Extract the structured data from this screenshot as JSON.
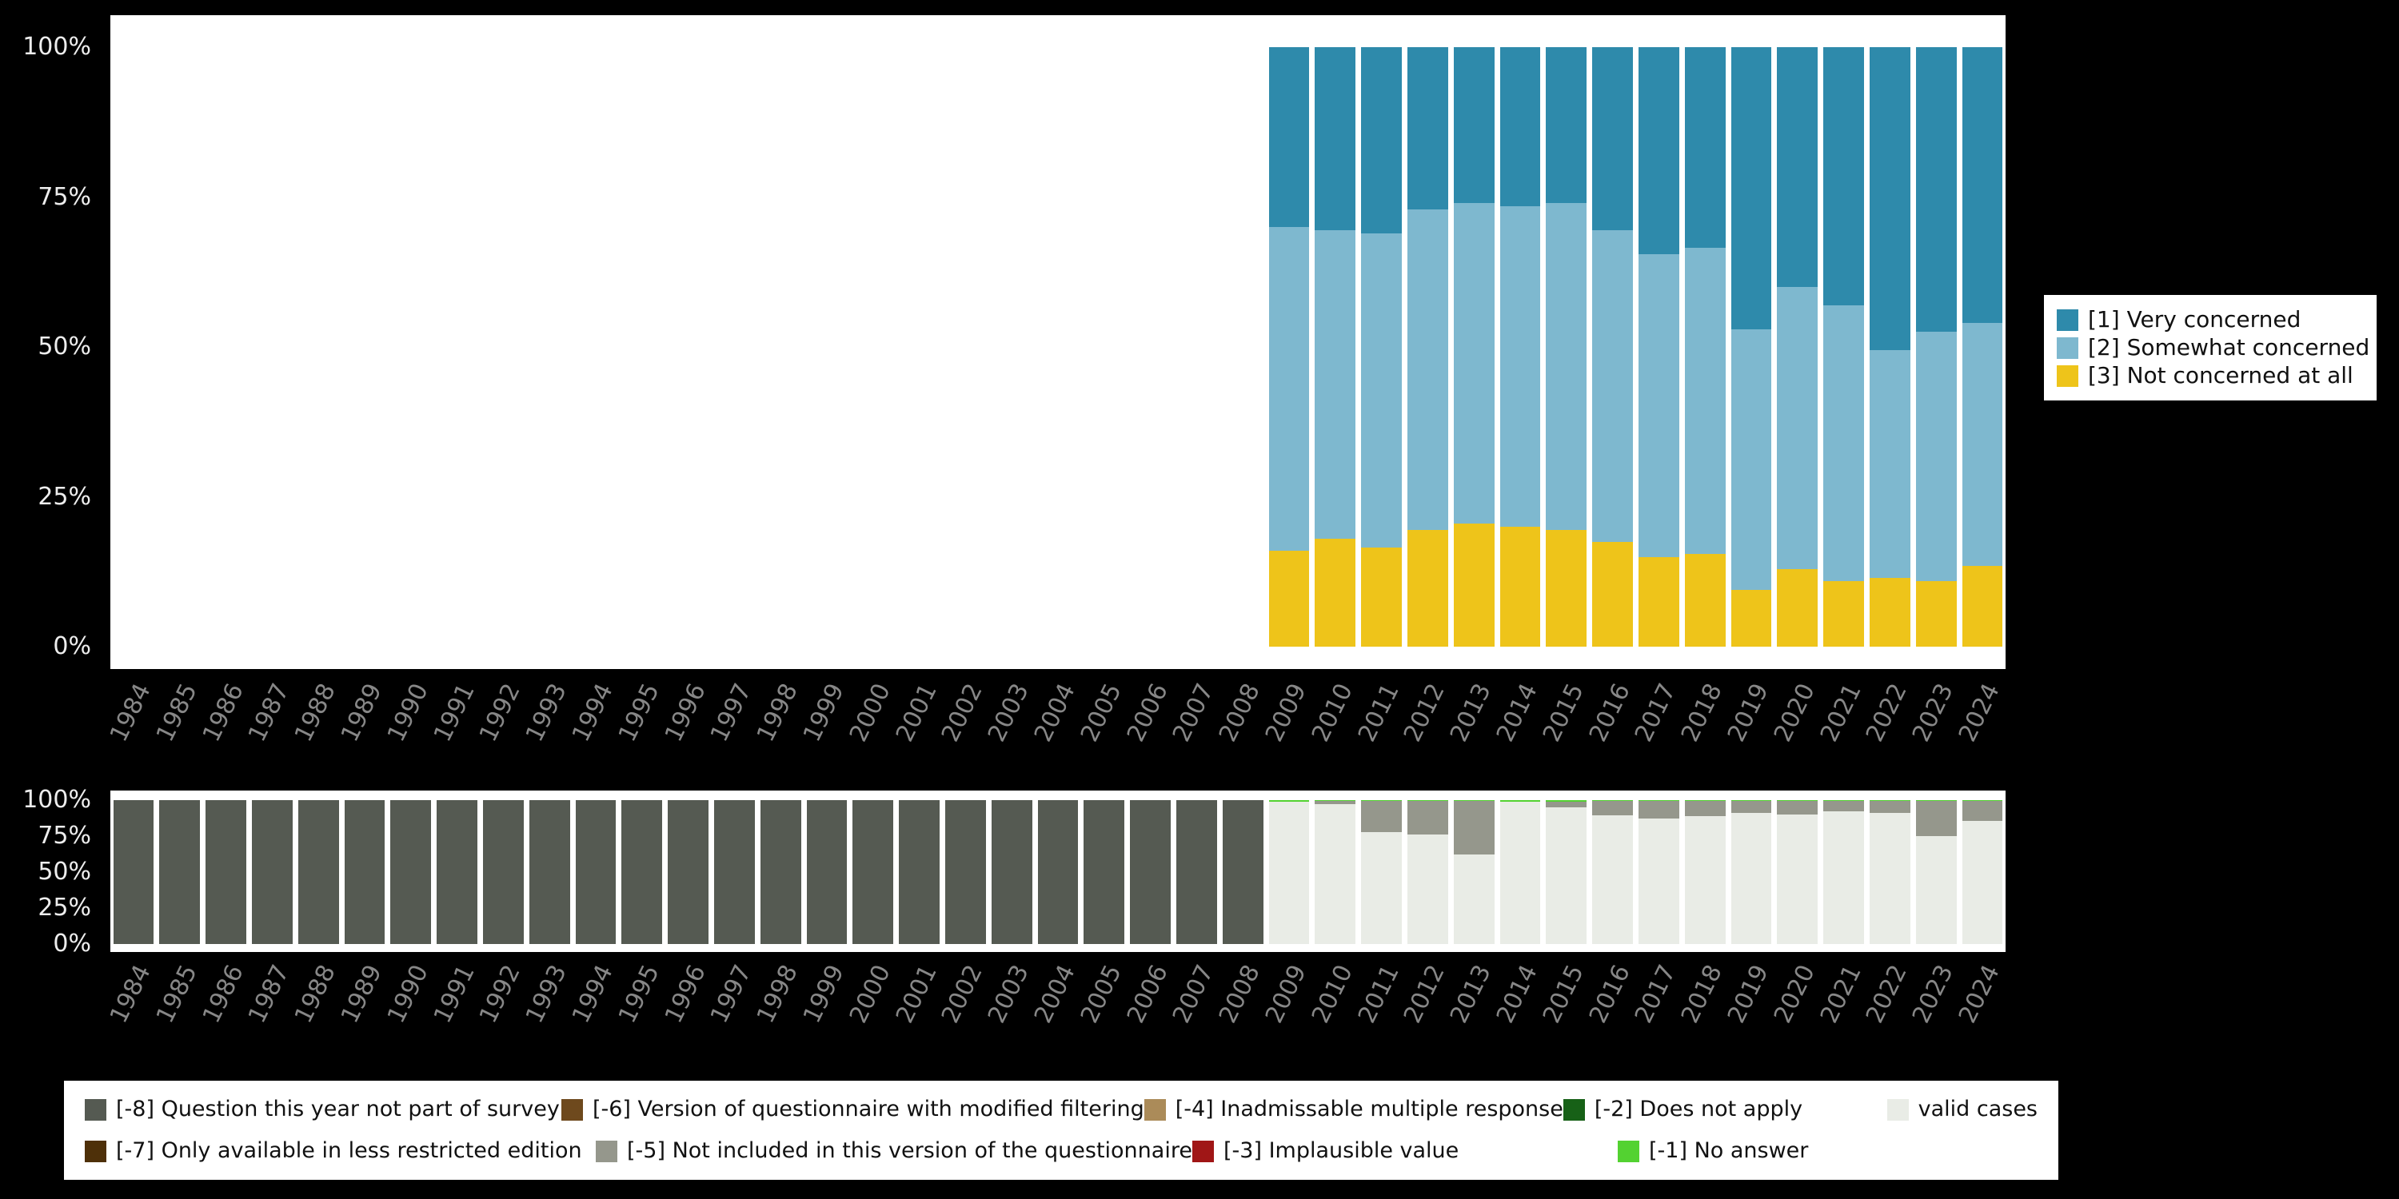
{
  "title": "",
  "colors": {
    "background": "#000000",
    "panel": "#ffffff",
    "axis_tick_text": "#ededed",
    "year_tick_text": "#878787",
    "very_concerned": "#2e8aab",
    "somewhat_concerned": "#7eb8cf",
    "not_concerned": "#eec41a",
    "missing_dash8": "#555a52",
    "missing_dash7": "#4e3009",
    "missing_dash6": "#6e491d",
    "missing_dash5": "#95978c",
    "missing_dash4": "#ab8b59",
    "missing_dash3": "#a01616",
    "missing_dash2": "#176117",
    "missing_dash1": "#53d231",
    "valid_cases": "#e9ece6"
  },
  "chart_data": [
    {
      "id": "distribution",
      "type": "bar",
      "stacked": true,
      "unit": "percent",
      "grid": false,
      "legend_position": "right",
      "ylim": [
        0,
        100
      ],
      "yticks": [
        "100%",
        "75%",
        "50%",
        "25%",
        "0%"
      ],
      "x": [
        "1984",
        "1985",
        "1986",
        "1987",
        "1988",
        "1989",
        "1990",
        "1991",
        "1992",
        "1993",
        "1994",
        "1995",
        "1996",
        "1997",
        "1998",
        "1999",
        "2000",
        "2001",
        "2002",
        "2003",
        "2004",
        "2005",
        "2006",
        "2007",
        "2008",
        "2009",
        "2010",
        "2011",
        "2012",
        "2013",
        "2014",
        "2015",
        "2016",
        "2017",
        "2018",
        "2019",
        "2020",
        "2021",
        "2022",
        "2023",
        "2024"
      ],
      "series": [
        {
          "name": "[3] Not concerned at all",
          "color": "#eec41a",
          "values": [
            0,
            0,
            0,
            0,
            0,
            0,
            0,
            0,
            0,
            0,
            0,
            0,
            0,
            0,
            0,
            0,
            0,
            0,
            0,
            0,
            0,
            0,
            0,
            0,
            0,
            16,
            18,
            16.5,
            19.5,
            20.5,
            20,
            19.5,
            17.5,
            15,
            15.5,
            9.5,
            13,
            11,
            11.5,
            11,
            13.5
          ]
        },
        {
          "name": "[2] Somewhat concerned",
          "color": "#7eb8cf",
          "values": [
            0,
            0,
            0,
            0,
            0,
            0,
            0,
            0,
            0,
            0,
            0,
            0,
            0,
            0,
            0,
            0,
            0,
            0,
            0,
            0,
            0,
            0,
            0,
            0,
            0,
            54,
            51.5,
            52.5,
            53.5,
            53.5,
            53.5,
            54.5,
            52,
            50.5,
            51,
            43.5,
            47,
            46,
            38,
            41.5,
            40.5
          ]
        },
        {
          "name": "[1] Very concerned",
          "color": "#2e8aab",
          "values": [
            0,
            0,
            0,
            0,
            0,
            0,
            0,
            0,
            0,
            0,
            0,
            0,
            0,
            0,
            0,
            0,
            0,
            0,
            0,
            0,
            0,
            0,
            0,
            0,
            0,
            30,
            30.5,
            31,
            27,
            26,
            26.5,
            26,
            30.5,
            34.5,
            33.5,
            47,
            40,
            43,
            50.5,
            47.5,
            46
          ]
        }
      ]
    },
    {
      "id": "missing-values",
      "type": "bar",
      "stacked": true,
      "unit": "percent",
      "grid": false,
      "legend_position": "bottom",
      "ylim": [
        0,
        100
      ],
      "yticks": [
        "100%",
        "75%",
        "50%",
        "25%",
        "0%"
      ],
      "x": [
        "1984",
        "1985",
        "1986",
        "1987",
        "1988",
        "1989",
        "1990",
        "1991",
        "1992",
        "1993",
        "1994",
        "1995",
        "1996",
        "1997",
        "1998",
        "1999",
        "2000",
        "2001",
        "2002",
        "2003",
        "2004",
        "2005",
        "2006",
        "2007",
        "2008",
        "2009",
        "2010",
        "2011",
        "2012",
        "2013",
        "2014",
        "2015",
        "2016",
        "2017",
        "2018",
        "2019",
        "2020",
        "2021",
        "2022",
        "2023",
        "2024"
      ],
      "series": [
        {
          "name": "valid cases",
          "color": "#e9ece6",
          "values": [
            0,
            0,
            0,
            0,
            0,
            0,
            0,
            0,
            0,
            0,
            0,
            0,
            0,
            0,
            0,
            0,
            0,
            0,
            0,
            0,
            0,
            0,
            0,
            0,
            0,
            99,
            97,
            78,
            76,
            62.5,
            99,
            95,
            89.5,
            87.5,
            89,
            91,
            90,
            92,
            91,
            75,
            85.5
          ]
        },
        {
          "name": "[-5] Not included in this version of the questionnaire",
          "color": "#95978c",
          "values": [
            0,
            0,
            0,
            0,
            0,
            0,
            0,
            0,
            0,
            0,
            0,
            0,
            0,
            0,
            0,
            0,
            0,
            0,
            0,
            0,
            0,
            0,
            0,
            0,
            0,
            0,
            2.5,
            21.5,
            23.5,
            37,
            0,
            4,
            10,
            12,
            10.5,
            8.5,
            9.5,
            7.5,
            8.5,
            24.5,
            14
          ]
        },
        {
          "name": "[-1] No answer",
          "color": "#53d231",
          "values": [
            0,
            0,
            0,
            0,
            0,
            0,
            0,
            0,
            0,
            0,
            0,
            0,
            0,
            0,
            0,
            0,
            0,
            0,
            0,
            0,
            0,
            0,
            0,
            0,
            0,
            1,
            0.5,
            0.5,
            0.5,
            0.5,
            1,
            1,
            0.5,
            0.5,
            0.5,
            0.5,
            0.5,
            0.5,
            0.5,
            0.5,
            0.5
          ]
        },
        {
          "name": "[-8] Question this year not part of survey",
          "color": "#555a52",
          "values": [
            100,
            100,
            100,
            100,
            100,
            100,
            100,
            100,
            100,
            100,
            100,
            100,
            100,
            100,
            100,
            100,
            100,
            100,
            100,
            100,
            100,
            100,
            100,
            100,
            100,
            0,
            0,
            0,
            0,
            0,
            0,
            0,
            0,
            0,
            0,
            0,
            0,
            0,
            0,
            0,
            0
          ]
        }
      ]
    }
  ],
  "top_legend": {
    "items": [
      {
        "label": "[1] Very concerned",
        "color": "#2e8aab"
      },
      {
        "label": "[2] Somewhat concerned",
        "color": "#7eb8cf"
      },
      {
        "label": "[3] Not concerned at all",
        "color": "#eec41a"
      }
    ]
  },
  "missing_legend": {
    "row1": [
      {
        "label": "[-8] Question this year not part of survey",
        "color": "#555a52"
      },
      {
        "label": "[-6] Version of questionnaire with modified filtering",
        "color": "#6e491d"
      },
      {
        "label": "[-4] Inadmissable multiple response",
        "color": "#ab8b59"
      },
      {
        "label": "[-2] Does not apply",
        "color": "#176117"
      },
      {
        "label": "valid cases",
        "color": "#e9ece6"
      }
    ],
    "row2": [
      {
        "label": "[-7] Only available in less restricted edition",
        "color": "#4e3009"
      },
      {
        "label": "[-5] Not included in this version of the questionnaire",
        "color": "#95978c"
      },
      {
        "label": "[-3] Implausible value",
        "color": "#a01616"
      },
      {
        "label": "[-1] No answer",
        "color": "#53d231"
      }
    ]
  }
}
